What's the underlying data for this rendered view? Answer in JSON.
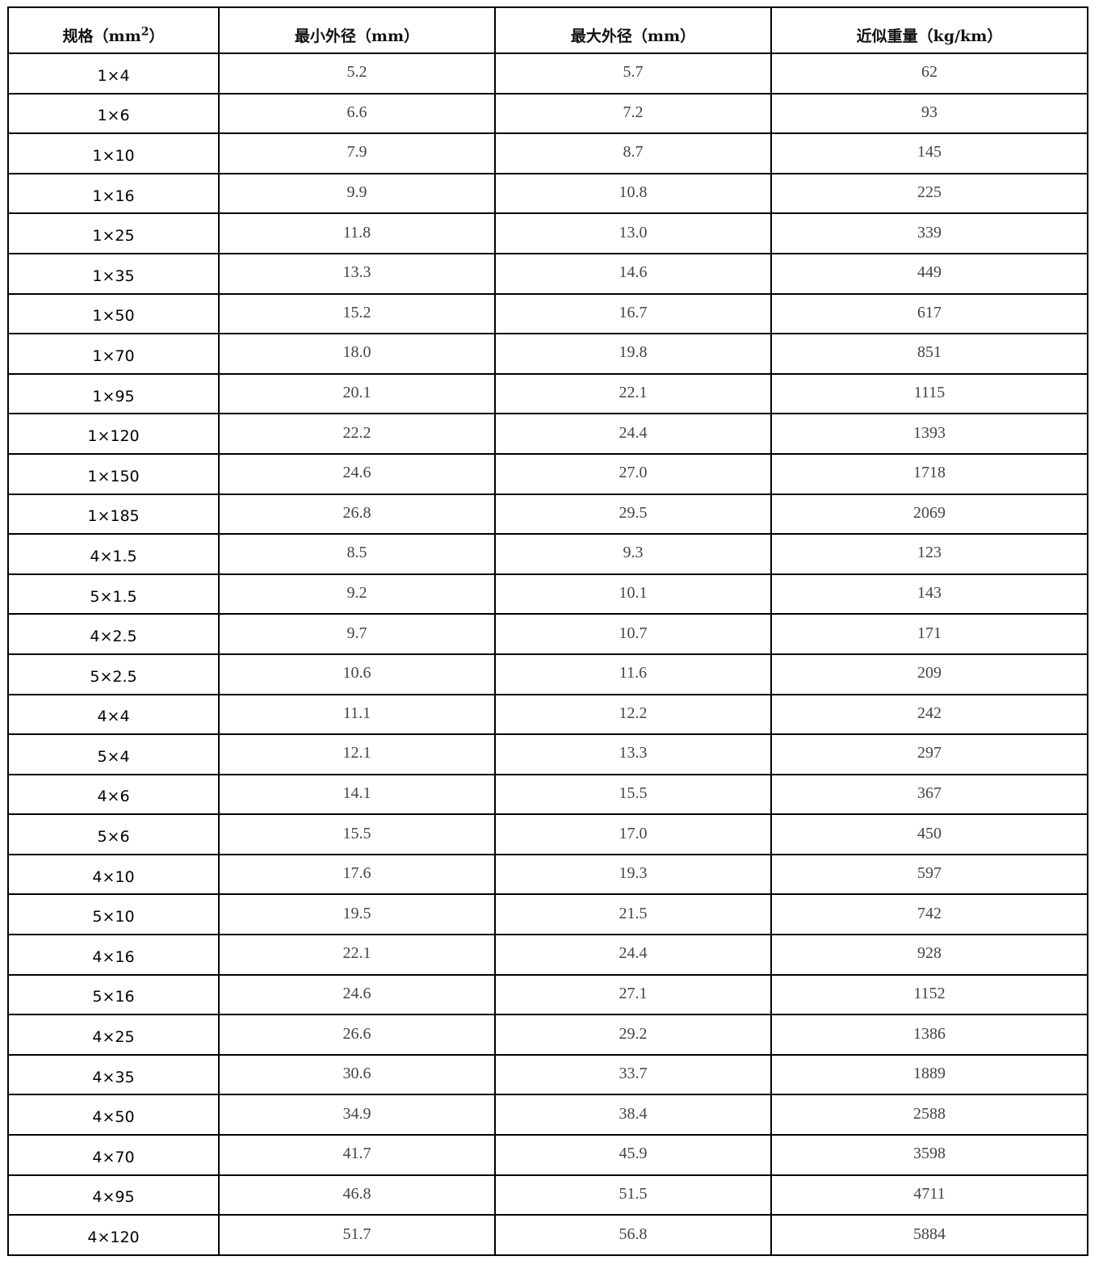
{
  "table": {
    "headers": [
      "规格（mm",
      "最小外径（mm）",
      "最大外径（mm）",
      "近似重量（kg/km）"
    ],
    "header_spec_sup": "2",
    "header_spec_close": "）",
    "rows": [
      [
        "1×4",
        "5.2",
        "5.7",
        "62"
      ],
      [
        "1×6",
        "6.6",
        "7.2",
        "93"
      ],
      [
        "1×10",
        "7.9",
        "8.7",
        "145"
      ],
      [
        "1×16",
        "9.9",
        "10.8",
        "225"
      ],
      [
        "1×25",
        "11.8",
        "13.0",
        "339"
      ],
      [
        "1×35",
        "13.3",
        "14.6",
        "449"
      ],
      [
        "1×50",
        "15.2",
        "16.7",
        "617"
      ],
      [
        "1×70",
        "18.0",
        "19.8",
        "851"
      ],
      [
        "1×95",
        "20.1",
        "22.1",
        "1115"
      ],
      [
        "1×120",
        "22.2",
        "24.4",
        "1393"
      ],
      [
        "1×150",
        "24.6",
        "27.0",
        "1718"
      ],
      [
        "1×185",
        "26.8",
        "29.5",
        "2069"
      ],
      [
        "4×1.5",
        "8.5",
        "9.3",
        "123"
      ],
      [
        "5×1.5",
        "9.2",
        "10.1",
        "143"
      ],
      [
        "4×2.5",
        "9.7",
        "10.7",
        "171"
      ],
      [
        "5×2.5",
        "10.6",
        "11.6",
        "209"
      ],
      [
        "4×4",
        "11.1",
        "12.2",
        "242"
      ],
      [
        "5×4",
        "12.1",
        "13.3",
        "297"
      ],
      [
        "4×6",
        "14.1",
        "15.5",
        "367"
      ],
      [
        "5×6",
        "15.5",
        "17.0",
        "450"
      ],
      [
        "4×10",
        "17.6",
        "19.3",
        "597"
      ],
      [
        "5×10",
        "19.5",
        "21.5",
        "742"
      ],
      [
        "4×16",
        "22.1",
        "24.4",
        "928"
      ],
      [
        "5×16",
        "24.6",
        "27.1",
        "1152"
      ],
      [
        "4×25",
        "26.6",
        "29.2",
        "1386"
      ],
      [
        "4×35",
        "30.6",
        "33.7",
        "1889"
      ],
      [
        "4×50",
        "34.9",
        "38.4",
        "2588"
      ],
      [
        "4×70",
        "41.7",
        "45.9",
        "3598"
      ],
      [
        "4×95",
        "46.8",
        "51.5",
        "4711"
      ],
      [
        "4×120",
        "51.7",
        "56.8",
        "5884"
      ]
    ]
  }
}
